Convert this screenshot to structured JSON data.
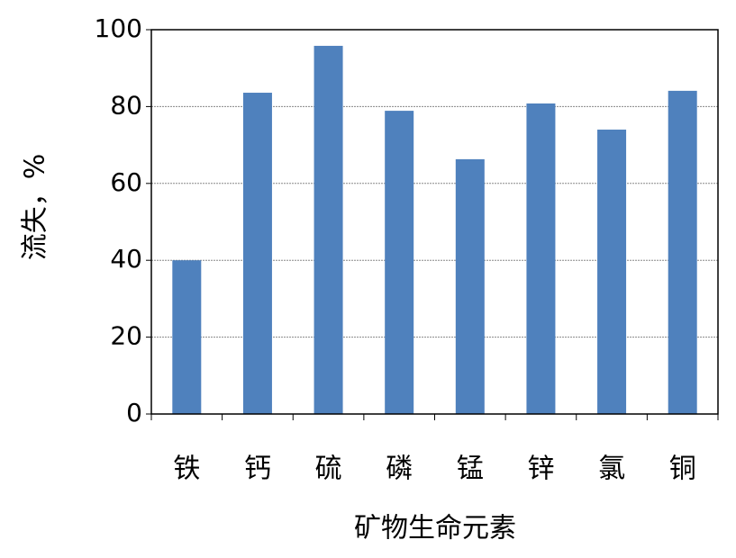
{
  "chart_data": {
    "type": "bar",
    "x_label": "矿物生命元素",
    "y_label": "流失，%",
    "categories": [
      "铁",
      "钙",
      "硫",
      "磷",
      "锰",
      "锌",
      "氯",
      "铜"
    ],
    "values": [
      40,
      83.6,
      95.8,
      78.9,
      66.3,
      80.8,
      74,
      84.1
    ],
    "color": "#4f81bd",
    "ylim": [
      0,
      100
    ],
    "yticks": [
      0,
      20,
      40,
      60,
      80,
      100
    ],
    "grid": true
  }
}
